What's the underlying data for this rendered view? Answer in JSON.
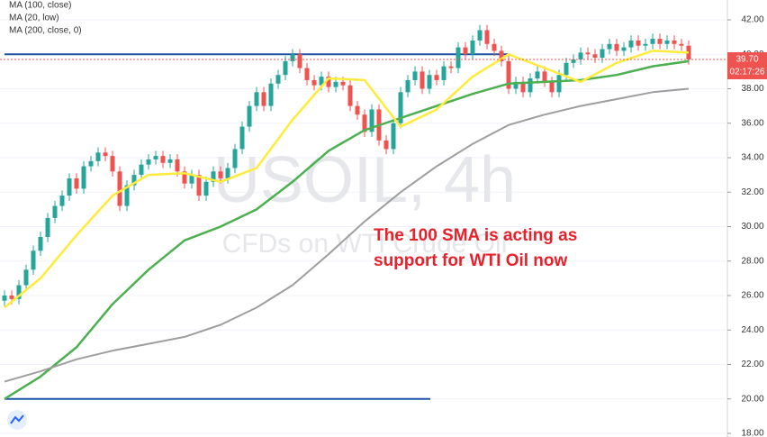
{
  "chart_data": {
    "type": "candlestick",
    "watermark": "USOIL, 4h",
    "watermark_subtitle": "CFDs on WTI Crude Oil",
    "annotation": [
      "The 100 SMA is acting as",
      "support for WTI Oil now"
    ],
    "annotation_color": "#e8202a",
    "up_color": "#26a69a",
    "down_color": "#ef5350",
    "ylim": [
      18,
      42
    ],
    "yticks": [
      {
        "value": 18,
        "label": "18.00"
      },
      {
        "value": 20,
        "label": "20.00"
      },
      {
        "value": 22,
        "label": "22.00"
      },
      {
        "value": 24,
        "label": "24.00"
      },
      {
        "value": 26,
        "label": "26.00"
      },
      {
        "value": 28,
        "label": "28.00"
      },
      {
        "value": 30,
        "label": "30.00"
      },
      {
        "value": 32,
        "label": "32.00"
      },
      {
        "value": 34,
        "label": "34.00"
      },
      {
        "value": 36,
        "label": "36.00"
      },
      {
        "value": 38,
        "label": "38.00"
      },
      {
        "value": 40,
        "label": "40.00"
      },
      {
        "value": 42,
        "label": "42.00"
      }
    ],
    "grid": true,
    "open": [
      25.7,
      26.0,
      25.8,
      26.6,
      27.5,
      28.6,
      29.4,
      30.5,
      31.2,
      31.8,
      32.8,
      32.2,
      33.5,
      33.8,
      34.3,
      34.1,
      33.2,
      31.2,
      32.4,
      33.0,
      33.6,
      33.9,
      34.1,
      33.7,
      33.9,
      33.2,
      32.5,
      33.0,
      31.8,
      32.6,
      33.2,
      32.8,
      33.4,
      34.5,
      35.8,
      37.0,
      37.8,
      37.0,
      38.3,
      38.8,
      39.6,
      40.0,
      39.2,
      38.5,
      38.2,
      38.7,
      38.1,
      38.4,
      38.2,
      37.0,
      36.5,
      35.5,
      36.8,
      35.0,
      34.5,
      36.0,
      37.8,
      38.5,
      39.0,
      38.0,
      38.8,
      38.5,
      39.3,
      39.2,
      40.4,
      40.0,
      40.8,
      41.4,
      40.6,
      40.2,
      39.6,
      38.0,
      38.4,
      37.8,
      38.6,
      39.0,
      38.4,
      37.8,
      38.8,
      39.5,
      39.7,
      40.1,
      40.0,
      39.8,
      40.3,
      40.6,
      40.2,
      40.4,
      40.8,
      40.5,
      40.6,
      40.9,
      40.6,
      40.8,
      40.6,
      40.5
    ],
    "high": [
      26.3,
      26.3,
      26.9,
      27.8,
      28.9,
      29.7,
      30.8,
      31.5,
      32.1,
      33.1,
      33.1,
      33.8,
      34.1,
      34.6,
      34.6,
      34.4,
      33.5,
      32.7,
      33.3,
      33.9,
      34.2,
      34.4,
      34.4,
      34.2,
      34.2,
      33.5,
      33.3,
      33.3,
      32.9,
      33.5,
      33.5,
      33.7,
      34.8,
      36.1,
      37.3,
      38.1,
      38.1,
      38.6,
      39.1,
      39.9,
      40.3,
      40.3,
      39.5,
      38.8,
      39.0,
      39.0,
      38.7,
      38.7,
      38.5,
      37.3,
      36.8,
      37.1,
      37.1,
      35.3,
      36.3,
      38.1,
      38.8,
      39.3,
      39.3,
      39.1,
      39.1,
      39.6,
      39.6,
      40.7,
      40.7,
      41.1,
      41.7,
      41.7,
      40.9,
      40.5,
      39.9,
      38.7,
      38.7,
      38.9,
      39.3,
      39.3,
      38.7,
      39.1,
      39.8,
      40.0,
      40.4,
      40.4,
      40.3,
      40.6,
      40.9,
      40.9,
      40.7,
      41.1,
      41.1,
      40.9,
      41.2,
      41.2,
      41.1,
      41.1,
      40.9,
      40.8
    ],
    "low": [
      25.4,
      25.5,
      25.5,
      26.3,
      27.2,
      28.3,
      29.1,
      30.2,
      30.9,
      31.5,
      31.9,
      31.9,
      33.2,
      33.5,
      33.8,
      32.9,
      30.9,
      30.9,
      32.1,
      32.7,
      33.3,
      33.6,
      33.4,
      33.4,
      32.9,
      32.2,
      32.2,
      31.5,
      31.5,
      32.3,
      32.5,
      32.5,
      33.1,
      34.2,
      35.5,
      36.7,
      36.7,
      36.7,
      38.0,
      38.5,
      39.3,
      38.9,
      38.2,
      37.9,
      37.9,
      37.8,
      37.8,
      37.9,
      36.7,
      36.2,
      35.2,
      35.2,
      34.7,
      34.2,
      34.2,
      35.7,
      37.5,
      38.2,
      37.7,
      37.7,
      38.2,
      38.2,
      38.9,
      38.9,
      39.7,
      39.7,
      40.5,
      40.3,
      39.9,
      39.3,
      37.7,
      37.7,
      37.5,
      37.5,
      38.3,
      38.1,
      37.5,
      37.5,
      38.5,
      39.2,
      39.4,
      39.7,
      39.5,
      39.5,
      40.0,
      39.9,
      39.9,
      40.1,
      40.2,
      40.2,
      40.3,
      40.3,
      40.3,
      40.3,
      40.2,
      39.4
    ],
    "close": [
      26.0,
      25.8,
      26.6,
      27.5,
      28.6,
      29.4,
      30.5,
      31.2,
      31.8,
      32.8,
      32.2,
      33.5,
      33.8,
      34.3,
      34.1,
      33.2,
      31.2,
      32.4,
      33.0,
      33.6,
      33.9,
      34.1,
      33.7,
      33.9,
      33.2,
      32.5,
      33.0,
      31.8,
      32.6,
      33.2,
      32.8,
      33.4,
      34.5,
      35.8,
      37.0,
      37.8,
      37.0,
      38.3,
      38.8,
      39.6,
      40.0,
      39.2,
      38.5,
      38.2,
      38.7,
      38.1,
      38.4,
      38.2,
      37.0,
      36.5,
      35.5,
      36.8,
      35.0,
      34.5,
      36.0,
      37.8,
      38.5,
      39.0,
      38.0,
      38.8,
      38.5,
      39.3,
      39.2,
      40.4,
      40.0,
      40.8,
      41.4,
      40.6,
      40.2,
      39.6,
      38.0,
      38.4,
      37.8,
      38.6,
      39.0,
      38.4,
      37.8,
      38.8,
      39.5,
      39.7,
      40.1,
      40.0,
      39.8,
      40.3,
      40.6,
      40.2,
      40.4,
      40.8,
      40.5,
      40.6,
      40.9,
      40.6,
      40.8,
      40.6,
      40.5,
      39.7
    ],
    "series": [
      {
        "name": "MA (100, close)",
        "color": "#4caf50",
        "values": [
          20.0,
          21.3,
          23.0,
          25.5,
          27.5,
          29.2,
          30.0,
          31.0,
          32.6,
          34.4,
          35.6,
          36.3,
          37.0,
          37.7,
          38.3,
          38.4,
          38.5,
          38.8,
          39.3,
          39.6
        ]
      },
      {
        "name": "MA (20, low)",
        "color": "#ffeb3b",
        "values": [
          25.3,
          27.0,
          29.5,
          31.8,
          33.0,
          33.1,
          32.6,
          33.4,
          36.2,
          38.6,
          38.5,
          35.8,
          36.8,
          38.7,
          40.0,
          39.2,
          38.4,
          39.5,
          40.2,
          40.1
        ]
      },
      {
        "name": "MA (200, close, 0)",
        "color": "#9e9e9e",
        "values": [
          21.0,
          21.6,
          22.3,
          22.8,
          23.2,
          23.6,
          24.3,
          25.3,
          26.6,
          28.4,
          30.3,
          32.0,
          33.5,
          34.8,
          35.9,
          36.5,
          37.0,
          37.4,
          37.8,
          38.0
        ]
      }
    ],
    "hlines": [
      {
        "value": 40,
        "color": "#1e53a8"
      },
      {
        "value": 20,
        "color": "#1e53a8"
      }
    ],
    "price_label": {
      "value": 39.7,
      "label": "39.70"
    },
    "countdown": "02:17:26"
  }
}
